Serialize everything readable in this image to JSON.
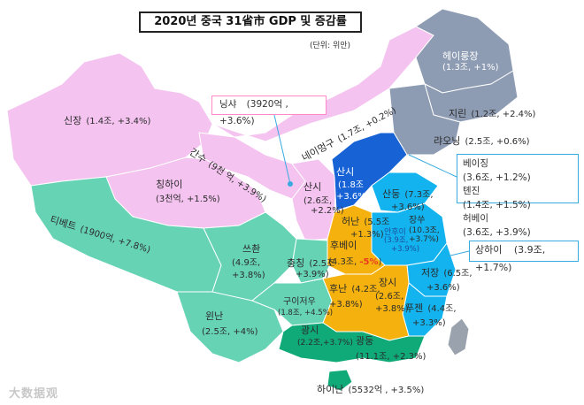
{
  "title": "2020년 중국 31省市 GDP 및 증감률",
  "unit": "(단위: 위안)",
  "colors": {
    "pink": "#f4c3f0",
    "teal": "#66d3b5",
    "gray": "#8e9cb3",
    "dark_blue": "#1763d6",
    "light_blue": "#12b3ee",
    "orange": "#f5b20f",
    "green": "#10a978",
    "negative": "#e83a1e"
  },
  "regions": {
    "heilongjiang": {
      "name": "헤이룽장",
      "value": "(1.3조, +1%)"
    },
    "jilin": {
      "name": "지린",
      "value": "(1.2조, +2.4%)"
    },
    "liaoning": {
      "name": "랴오닝",
      "value": "(2.5조, +0.6%)"
    },
    "xinjiang": {
      "name": "신장",
      "value": "(1.4조, +3.4%)"
    },
    "neimenggu": {
      "name": "네이멍구",
      "value": "(1.7조, +0.2%)"
    },
    "gansu": {
      "name": "간수",
      "value": "(9천 억, +3.9%)"
    },
    "qinghai": {
      "name": "칭하이",
      "value": "(3천억, +1.5%)"
    },
    "xizang": {
      "name": "티베트",
      "value": "(1900억, +7.8%)"
    },
    "shaanxi": {
      "name": "산시",
      "value": "(2.6조,",
      "value2": "+2.2%)"
    },
    "shanxi": {
      "name": "산시",
      "value": "(1.8조",
      "value2": "+3.6%)"
    },
    "shandong": {
      "name": "산둥",
      "value": "(7.3조,",
      "value2": "+3.6%)"
    },
    "henan": {
      "name": "허난",
      "value": "(5.5조",
      "value2": "+1.3%)"
    },
    "jiangsu": {
      "name": "장쑤",
      "value": "(10.3조,",
      "value2": "+3.7%)"
    },
    "anhui": {
      "name": "안후이",
      "value": "(3.9조,",
      "value2": "+3.9%)"
    },
    "hubei": {
      "name": "후베이",
      "value": "(4.3조, ",
      "neg": "-5%",
      "close": ")"
    },
    "sichuan": {
      "name": "쓰촨",
      "value": "(4.9조,",
      "value2": "+3.8%)"
    },
    "chongqing": {
      "name": "충칭",
      "value": "(2.5조",
      "value2": "+3.9%)"
    },
    "hunan": {
      "name": "후난",
      "value": "(4.2조,",
      "value2": "+3.8%)"
    },
    "jiangxi": {
      "name": "장시",
      "value": "(2.6조,",
      "value2": "+3.8%)"
    },
    "zhejiang": {
      "name": "저장",
      "value": "(6.5조,",
      "value2": "+3.6%)"
    },
    "guizhou": {
      "name": "구이저우",
      "value": "(1.8조, +4.5%)"
    },
    "fujian": {
      "name": "푸젠",
      "value": "(4.4조,",
      "value2": "+3.3%)"
    },
    "yunnan": {
      "name": "윈난",
      "value": "(2.5조, +4%)"
    },
    "guangxi": {
      "name": "광시",
      "value": "(2.2조,+3.7%)"
    },
    "guangdong": {
      "name": "광둥",
      "value": "(11.1조, +2.3%)"
    },
    "hainan": {
      "name": "하이난",
      "value": "(5532억 , +3.5%)"
    }
  },
  "callouts": {
    "ningxia": {
      "name": "닝샤",
      "value": "(3920억 , +3.6%)"
    },
    "beijing": {
      "name": "베이징",
      "value": "(3.6조, +1.2%)"
    },
    "tianjin": {
      "name": "톈진",
      "value": "(1.4조, +1.5%)"
    },
    "hebei": {
      "name": "허베이",
      "value": "(3.6조, +3.9%)"
    },
    "shanghai": {
      "name": "상하이",
      "value": "(3.9조, +1.7%)"
    }
  },
  "watermark": "大数据观"
}
